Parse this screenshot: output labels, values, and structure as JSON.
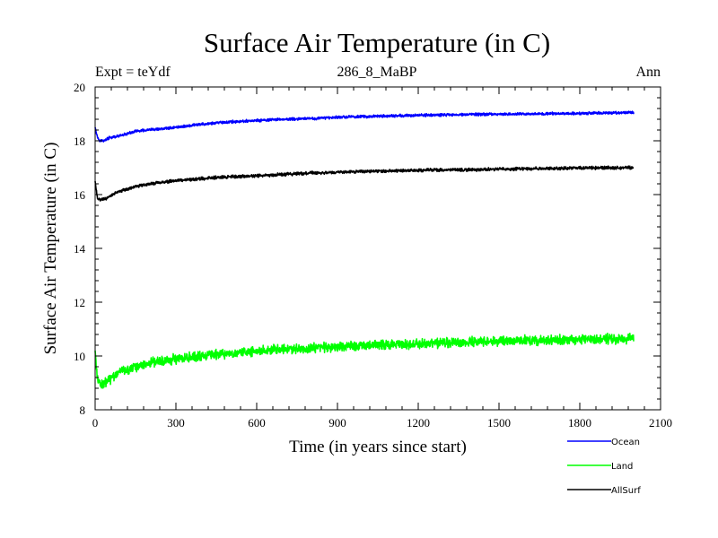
{
  "chart_data": {
    "type": "line",
    "title": "Surface Air Temperature (in C)",
    "subtitle_left": "Expt = teYdf",
    "subtitle_center": "286_8_MaBP",
    "subtitle_right": "Ann",
    "xlabel": "Time (in years since start)",
    "ylabel": "Surface Air Temperature (in C)",
    "xlim": [
      0,
      2100
    ],
    "ylim": [
      8,
      20
    ],
    "xticks": [
      0,
      300,
      600,
      900,
      1200,
      1500,
      1800,
      2100
    ],
    "xtick_labels": [
      "0",
      "300",
      "600",
      "900",
      "1200",
      "1500",
      "1800",
      "2100"
    ],
    "yticks": [
      8,
      10,
      12,
      14,
      16,
      18,
      20
    ],
    "ytick_labels": [
      "8",
      "10",
      "12",
      "14",
      "16",
      "18",
      "20"
    ],
    "legend_position": "bottom-right",
    "series": [
      {
        "name": "Ocean",
        "color": "#0000ff",
        "x": [
          0,
          5,
          10,
          20,
          30,
          50,
          75,
          100,
          150,
          200,
          300,
          400,
          500,
          600,
          700,
          800,
          900,
          1000,
          1200,
          1400,
          1600,
          1800,
          2000
        ],
        "y": [
          18.5,
          18.3,
          18.1,
          18.0,
          18.0,
          18.1,
          18.15,
          18.2,
          18.35,
          18.4,
          18.5,
          18.62,
          18.7,
          18.75,
          18.8,
          18.82,
          18.88,
          18.9,
          18.95,
          18.98,
          19.0,
          19.02,
          19.05
        ],
        "noise": 0.06
      },
      {
        "name": "Land",
        "color": "#00ff00",
        "x": [
          0,
          5,
          10,
          20,
          30,
          50,
          75,
          100,
          150,
          200,
          300,
          400,
          500,
          600,
          700,
          800,
          900,
          1000,
          1200,
          1400,
          1600,
          1800,
          2000
        ],
        "y": [
          10.2,
          9.6,
          9.1,
          8.95,
          8.95,
          9.1,
          9.3,
          9.45,
          9.6,
          9.75,
          9.9,
          10.0,
          10.1,
          10.18,
          10.25,
          10.3,
          10.35,
          10.4,
          10.45,
          10.52,
          10.57,
          10.62,
          10.65
        ],
        "noise": 0.22
      },
      {
        "name": "AllSurf",
        "color": "#000000",
        "x": [
          0,
          5,
          10,
          20,
          30,
          50,
          75,
          100,
          150,
          200,
          300,
          400,
          500,
          600,
          700,
          800,
          900,
          1000,
          1200,
          1400,
          1600,
          1800,
          2000
        ],
        "y": [
          16.5,
          16.1,
          15.85,
          15.8,
          15.82,
          15.9,
          16.05,
          16.15,
          16.3,
          16.4,
          16.52,
          16.6,
          16.66,
          16.7,
          16.75,
          16.8,
          16.83,
          16.86,
          16.9,
          16.93,
          16.96,
          16.99,
          17.0
        ],
        "noise": 0.07
      }
    ]
  }
}
